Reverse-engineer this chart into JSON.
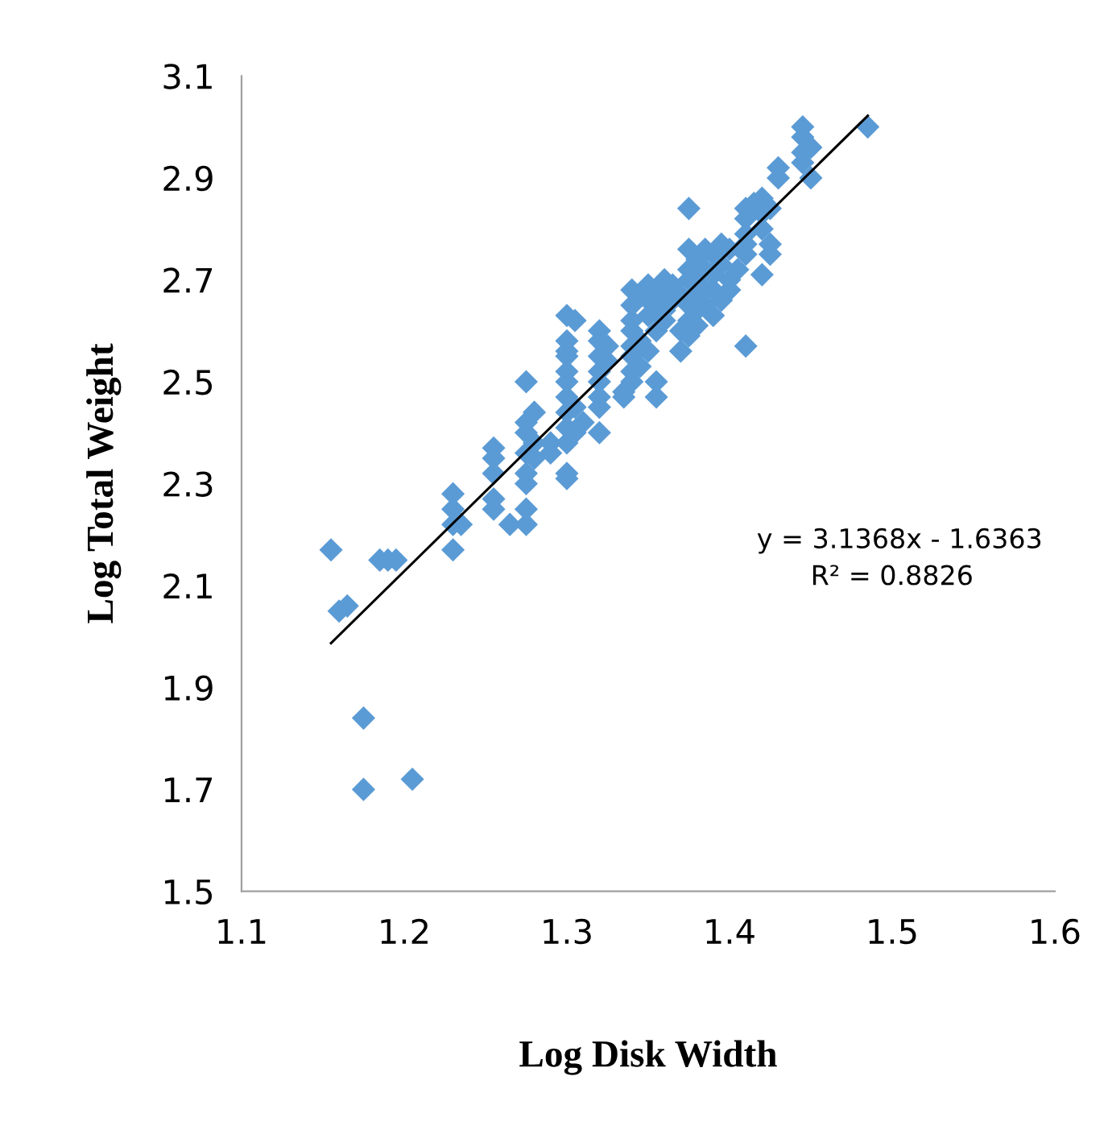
{
  "chart_data": {
    "type": "scatter",
    "xlabel": "Log Disk Width",
    "ylabel": "Log Total Weight",
    "xlim": [
      1.1,
      1.6
    ],
    "xticks": [
      1.1,
      1.2,
      1.3,
      1.4,
      1.5,
      1.6
    ],
    "ylim": [
      1.5,
      3.1
    ],
    "yticks": [
      1.5,
      1.7,
      1.9,
      2.1,
      2.3,
      2.5,
      2.7,
      2.9,
      3.1
    ],
    "grid": false,
    "legend": false,
    "marker": "diamond",
    "annotations": [
      "y = 3.1368x - 1.6363",
      "R² = 0.8826"
    ],
    "series": [
      {
        "color": "#5b9bd5",
        "x": [
          1.155,
          1.16,
          1.165,
          1.175,
          1.175,
          1.205,
          1.185,
          1.19,
          1.195,
          1.23,
          1.23,
          1.23,
          1.23,
          1.235,
          1.255,
          1.255,
          1.255,
          1.255,
          1.255,
          1.265,
          1.275,
          1.275,
          1.275,
          1.275,
          1.275,
          1.275,
          1.275,
          1.275,
          1.28,
          1.28,
          1.28,
          1.29,
          1.29,
          1.3,
          1.3,
          1.3,
          1.3,
          1.3,
          1.3,
          1.3,
          1.3,
          1.3,
          1.3,
          1.3,
          1.3,
          1.305,
          1.305,
          1.305,
          1.31,
          1.32,
          1.32,
          1.32,
          1.32,
          1.32,
          1.32,
          1.32,
          1.32,
          1.325,
          1.325,
          1.335,
          1.335,
          1.34,
          1.34,
          1.34,
          1.34,
          1.34,
          1.34,
          1.34,
          1.34,
          1.345,
          1.345,
          1.345,
          1.35,
          1.35,
          1.35,
          1.35,
          1.355,
          1.355,
          1.355,
          1.355,
          1.355,
          1.36,
          1.36,
          1.36,
          1.36,
          1.365,
          1.365,
          1.37,
          1.37,
          1.37,
          1.375,
          1.375,
          1.375,
          1.375,
          1.375,
          1.375,
          1.375,
          1.38,
          1.38,
          1.38,
          1.38,
          1.38,
          1.385,
          1.385,
          1.385,
          1.385,
          1.39,
          1.39,
          1.39,
          1.39,
          1.395,
          1.395,
          1.395,
          1.4,
          1.4,
          1.4,
          1.405,
          1.41,
          1.41,
          1.41,
          1.41,
          1.41,
          1.41,
          1.415,
          1.42,
          1.42,
          1.42,
          1.42,
          1.425,
          1.425,
          1.425,
          1.43,
          1.43,
          1.445,
          1.445,
          1.445,
          1.445,
          1.45,
          1.45,
          1.485
        ],
        "values": [
          2.17,
          2.05,
          2.06,
          1.84,
          1.7,
          1.72,
          2.15,
          2.15,
          2.15,
          2.28,
          2.25,
          2.22,
          2.17,
          2.22,
          2.37,
          2.35,
          2.32,
          2.27,
          2.25,
          2.22,
          2.42,
          2.4,
          2.36,
          2.32,
          2.3,
          2.25,
          2.22,
          2.5,
          2.44,
          2.38,
          2.35,
          2.36,
          2.38,
          2.63,
          2.58,
          2.55,
          2.52,
          2.5,
          2.47,
          2.44,
          2.41,
          2.38,
          2.32,
          2.31,
          2.56,
          2.62,
          2.45,
          2.4,
          2.42,
          2.6,
          2.58,
          2.55,
          2.52,
          2.5,
          2.47,
          2.4,
          2.45,
          2.57,
          2.54,
          2.48,
          2.47,
          2.68,
          2.65,
          2.62,
          2.6,
          2.57,
          2.55,
          2.52,
          2.5,
          2.67,
          2.58,
          2.53,
          2.69,
          2.66,
          2.63,
          2.56,
          2.68,
          2.65,
          2.6,
          2.5,
          2.47,
          2.7,
          2.67,
          2.64,
          2.62,
          2.69,
          2.66,
          2.6,
          2.56,
          2.67,
          2.76,
          2.72,
          2.7,
          2.65,
          2.62,
          2.59,
          2.84,
          2.74,
          2.7,
          2.67,
          2.64,
          2.61,
          2.76,
          2.72,
          2.68,
          2.65,
          2.75,
          2.71,
          2.68,
          2.63,
          2.77,
          2.73,
          2.66,
          2.76,
          2.7,
          2.68,
          2.72,
          2.84,
          2.82,
          2.79,
          2.77,
          2.75,
          2.57,
          2.85,
          2.86,
          2.83,
          2.8,
          2.71,
          2.84,
          2.77,
          2.75,
          2.92,
          2.9,
          3.0,
          2.98,
          2.95,
          2.93,
          2.96,
          2.9,
          3.0
        ]
      },
      {
        "type": "line",
        "color": "#000000",
        "marker": "none",
        "x": [
          1.155,
          1.485
        ],
        "values": [
          1.987,
          3.022
        ]
      }
    ]
  }
}
